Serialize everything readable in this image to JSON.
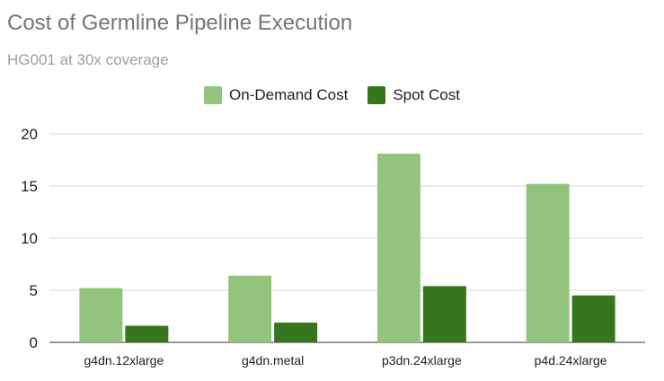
{
  "chart_data": {
    "type": "bar",
    "title": "Cost of Germline Pipeline Execution",
    "subtitle": "HG001 at 30x coverage",
    "categories": [
      "g4dn.12xlarge",
      "g4dn.metal",
      "p3dn.24xlarge",
      "p4d.24xlarge"
    ],
    "series": [
      {
        "name": "On-Demand Cost",
        "color": "#93c47d",
        "values": [
          5.2,
          6.4,
          18.1,
          15.2
        ]
      },
      {
        "name": "Spot Cost",
        "color": "#38761d",
        "values": [
          1.6,
          1.9,
          5.4,
          4.5
        ]
      }
    ],
    "ylim": [
      0,
      20
    ],
    "yticks": [
      0,
      5,
      10,
      15,
      20
    ],
    "xlabel": "",
    "ylabel": "",
    "grid": true,
    "legend_position": "top"
  }
}
